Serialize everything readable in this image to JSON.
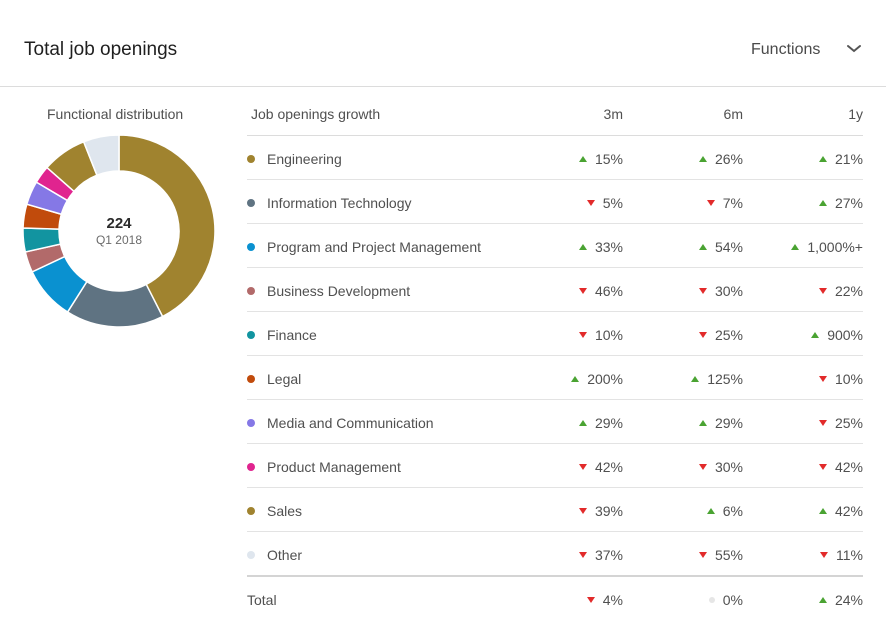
{
  "header": {
    "title": "Total job openings",
    "filter_label": "Functions"
  },
  "donut": {
    "label": "Functional distribution",
    "center_value": "224",
    "center_sub": "Q1 2018"
  },
  "table": {
    "columns": [
      "Job openings growth",
      "3m",
      "6m",
      "1y"
    ],
    "rows": [
      {
        "name": "Engineering",
        "color": "#a0832f",
        "share": 0.425,
        "v3m": "15%",
        "d3m": "up",
        "v6m": "26%",
        "d6m": "up",
        "v1y": "21%",
        "d1y": "up"
      },
      {
        "name": "Information Technology",
        "color": "#5f7382",
        "share": 0.165,
        "v3m": "5%",
        "d3m": "down",
        "v6m": "7%",
        "d6m": "down",
        "v1y": "27%",
        "d1y": "up"
      },
      {
        "name": "Program and Project Management",
        "color": "#0a91d0",
        "share": 0.09,
        "v3m": "33%",
        "d3m": "up",
        "v6m": "54%",
        "d6m": "up",
        "v1y": "1,000%+",
        "d1y": "up"
      },
      {
        "name": "Business Development",
        "color": "#b26a6a",
        "share": 0.035,
        "v3m": "46%",
        "d3m": "down",
        "v6m": "30%",
        "d6m": "down",
        "v1y": "22%",
        "d1y": "down"
      },
      {
        "name": "Finance",
        "color": "#1294a0",
        "share": 0.04,
        "v3m": "10%",
        "d3m": "down",
        "v6m": "25%",
        "d6m": "down",
        "v1y": "900%",
        "d1y": "up"
      },
      {
        "name": "Legal",
        "color": "#c14b0c",
        "share": 0.04,
        "v3m": "200%",
        "d3m": "up",
        "v6m": "125%",
        "d6m": "up",
        "v1y": "10%",
        "d1y": "down"
      },
      {
        "name": "Media and Communication",
        "color": "#8578e6",
        "share": 0.04,
        "v3m": "29%",
        "d3m": "up",
        "v6m": "29%",
        "d6m": "up",
        "v1y": "25%",
        "d1y": "down"
      },
      {
        "name": "Product Management",
        "color": "#e0248f",
        "share": 0.03,
        "v3m": "42%",
        "d3m": "down",
        "v6m": "30%",
        "d6m": "down",
        "v1y": "42%",
        "d1y": "down"
      },
      {
        "name": "Sales",
        "color": "#a0832f",
        "share": 0.075,
        "v3m": "39%",
        "d3m": "down",
        "v6m": "6%",
        "d6m": "up",
        "v1y": "42%",
        "d1y": "up"
      },
      {
        "name": "Other",
        "color": "#dfe6ee",
        "share": 0.06,
        "v3m": "37%",
        "d3m": "down",
        "v6m": "55%",
        "d6m": "down",
        "v1y": "11%",
        "d1y": "down"
      }
    ],
    "total": {
      "name": "Total",
      "v3m": "4%",
      "d3m": "down",
      "v6m": "0%",
      "d6m": "flat",
      "v1y": "24%",
      "d1y": "up"
    }
  }
}
